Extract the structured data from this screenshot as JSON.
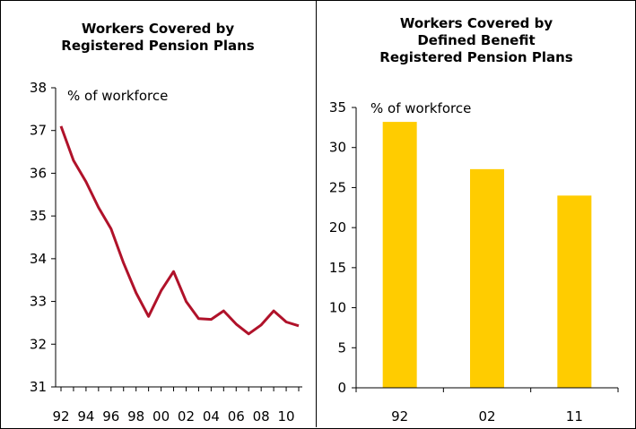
{
  "chart_data": [
    {
      "type": "line",
      "title_lines": [
        "Workers Covered by",
        "Registered Pension Plans"
      ],
      "unit_label": "% of workforce",
      "ylim": [
        31,
        38
      ],
      "yticks": [
        31,
        32,
        33,
        34,
        35,
        36,
        37,
        38
      ],
      "x": [
        1992,
        1993,
        1994,
        1995,
        1996,
        1997,
        1998,
        1999,
        2000,
        2001,
        2002,
        2003,
        2004,
        2005,
        2006,
        2007,
        2008,
        2009,
        2010,
        2011
      ],
      "xtick_labels": [
        "92",
        "94",
        "96",
        "98",
        "00",
        "02",
        "04",
        "06",
        "08",
        "10"
      ],
      "xtick_years": [
        1992,
        1994,
        1996,
        1998,
        2000,
        2002,
        2004,
        2006,
        2008,
        2010
      ],
      "series": [
        {
          "values": [
            37.1,
            36.3,
            35.8,
            35.2,
            34.7,
            33.9,
            33.2,
            32.65,
            33.25,
            33.7,
            33.0,
            32.6,
            32.58,
            32.78,
            32.47,
            32.24,
            32.45,
            32.78,
            32.52,
            32.43
          ],
          "color": "#b0122a"
        }
      ]
    },
    {
      "type": "bar",
      "title_lines": [
        "Workers Covered by",
        "Defined Benefit",
        "Registered Pension Plans"
      ],
      "unit_label": "% of workforce",
      "ylim": [
        0,
        35
      ],
      "yticks": [
        0,
        5,
        10,
        15,
        20,
        25,
        30,
        35
      ],
      "categories": [
        "92",
        "02",
        "11"
      ],
      "values": [
        33.2,
        27.3,
        24.0
      ],
      "color": "#ffcc00"
    }
  ]
}
